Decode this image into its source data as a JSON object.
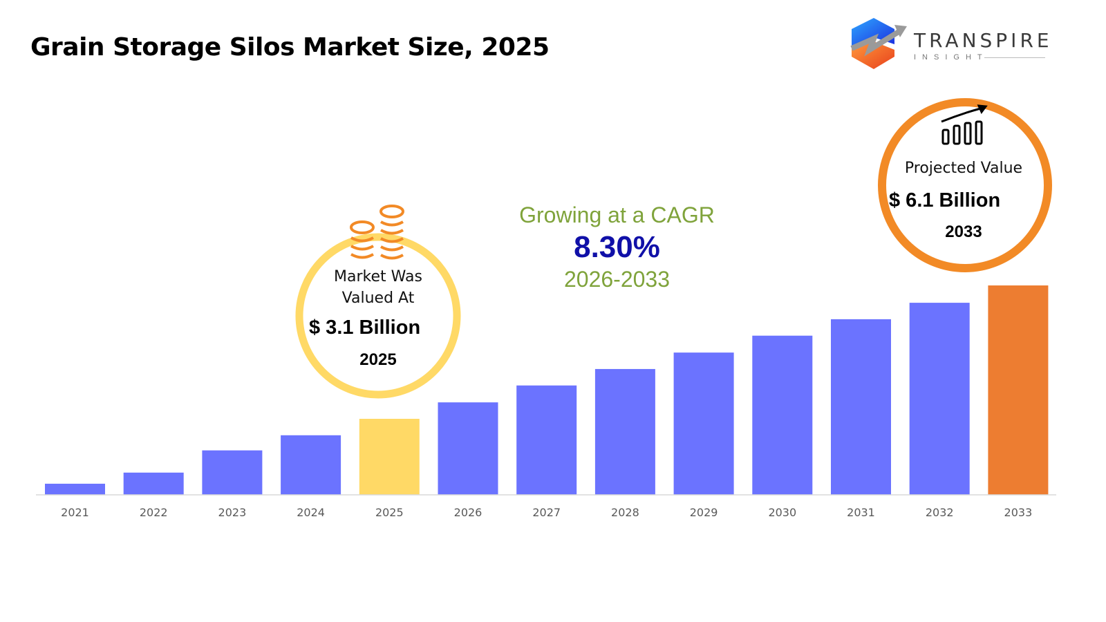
{
  "header": {
    "title": "Grain Storage Silos Market Size, 2025"
  },
  "logo": {
    "name": "TRANSPIRE",
    "sub": "INSIGHT"
  },
  "colors": {
    "bar": "#6B73FF",
    "highlight_start": "#FFD966",
    "highlight_end": "#ED7D31",
    "cagr_text": "#7FA33B",
    "cagr_value": "#1010A8"
  },
  "annotations": {
    "cagr_label": "Growing at a CAGR",
    "cagr_value": "8.30%",
    "cagr_years": "2026-2033",
    "start_label": "Market Was Valued At",
    "start_value": "$ 3.1 Billion",
    "start_year": "2025",
    "start_icon": "coin-stack-icon",
    "end_label": "Projected Value",
    "end_value": "$ 6.1 Billion",
    "end_year": "2033",
    "end_icon": "growth-bar-chart-icon"
  },
  "chart_data": {
    "type": "bar",
    "title": "Grain Storage Silos Market Size, 2025",
    "xlabel": "",
    "ylabel": "",
    "unit": "USD Billion",
    "categories": [
      "2021",
      "2022",
      "2023",
      "2024",
      "2025",
      "2026",
      "2027",
      "2028",
      "2029",
      "2030",
      "2031",
      "2032",
      "2033"
    ],
    "values": [
      1.64,
      1.89,
      2.39,
      2.73,
      3.1,
      3.47,
      3.85,
      4.22,
      4.59,
      4.97,
      5.34,
      5.71,
      6.1
    ],
    "ylim": [
      1.39,
      6.1
    ],
    "y_axis_visible": false,
    "grid": false,
    "legend": "none",
    "highlighted": {
      "2025": "#FFD966",
      "2033": "#ED7D31"
    }
  }
}
